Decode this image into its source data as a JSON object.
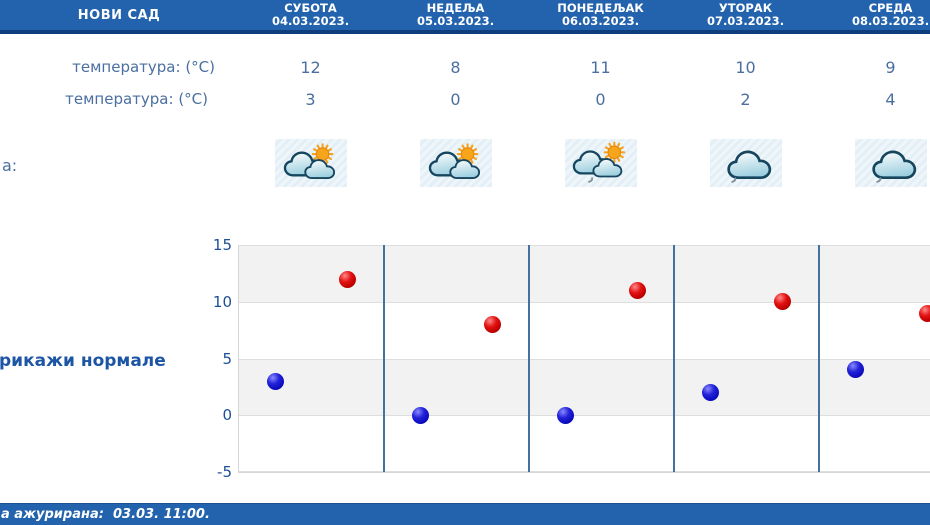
{
  "header": {
    "location": "НОВИ САД",
    "days": [
      {
        "name": "СУБОТА",
        "date": "04.03.2023."
      },
      {
        "name": "НЕДЕЉА",
        "date": "05.03.2023."
      },
      {
        "name": "ПОНЕДЕЉАК",
        "date": "06.03.2023."
      },
      {
        "name": "УТОРАК",
        "date": "07.03.2023."
      },
      {
        "name": "СРЕДА",
        "date": "08.03.2023."
      }
    ]
  },
  "rows": {
    "max_temp": {
      "label": "температура: (°C)",
      "values": [
        12,
        8,
        11,
        10,
        9
      ]
    },
    "min_temp": {
      "label": "температура: (°C)",
      "values": [
        3,
        0,
        0,
        2,
        4
      ]
    },
    "icons": {
      "label": "а:",
      "items": [
        {
          "icon": "cloud-sun-icon"
        },
        {
          "icon": "cloud-sun-icon"
        },
        {
          "icon": "cloud-sun-drizzle-icon"
        },
        {
          "icon": "cloud-drizzle-icon"
        },
        {
          "icon": "cloud-drizzle-icon"
        }
      ]
    }
  },
  "links": {
    "show_normals": "рикажи нормале"
  },
  "footer": {
    "updated": "а ажурирана:  03.03. 11:00."
  },
  "chart_data": {
    "type": "scatter",
    "categories": [
      "04.03.2023.",
      "05.03.2023.",
      "06.03.2023.",
      "07.03.2023.",
      "08.03.2023."
    ],
    "series": [
      {
        "name": "max_temp",
        "color": "#cc0e0e",
        "values": [
          12,
          8,
          11,
          10,
          9
        ]
      },
      {
        "name": "min_temp",
        "color": "#1111c4",
        "values": [
          3,
          0,
          0,
          2,
          4
        ]
      }
    ],
    "ylim": [
      -5,
      15
    ],
    "yticks": [
      15,
      10,
      5,
      0,
      -5
    ],
    "grid": "horizontal-bands-and-day-separators",
    "legend": "none"
  },
  "colors": {
    "header_blue": "#2363ae",
    "header_line": "#0e3d7d",
    "text_blue": "#4a6fa0",
    "link_blue": "#1d55a5",
    "axis_blue": "#1d4f96",
    "separator_blue": "#44719f",
    "max_dot_red": "#cc0e0e",
    "min_dot_blue": "#1111c4",
    "band_gray": "#f2f2f2",
    "icon_tile_bg": "#e9f2f8"
  }
}
